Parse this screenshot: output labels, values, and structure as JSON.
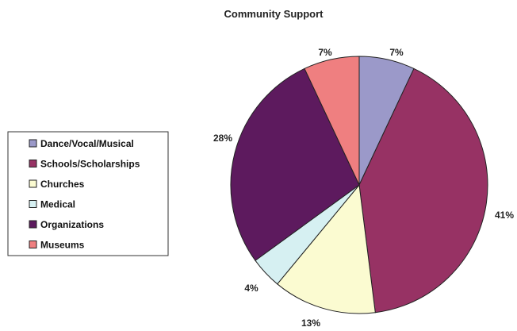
{
  "chart_data": {
    "type": "pie",
    "title": "Community Support",
    "categories": [
      "Dance/Vocal/Musical",
      "Schools/Scholarships",
      "Churches",
      "Medical",
      "Organizations",
      "Museums"
    ],
    "values": [
      7,
      41,
      13,
      4,
      28,
      7
    ],
    "labels": [
      "7%",
      "41%",
      "13%",
      "4%",
      "28%",
      "7%"
    ],
    "colors": [
      "#9b99c9",
      "#973264",
      "#fbfbd1",
      "#d6f0f2",
      "#5d1a5e",
      "#ef7f80"
    ],
    "legend_position": "left"
  }
}
